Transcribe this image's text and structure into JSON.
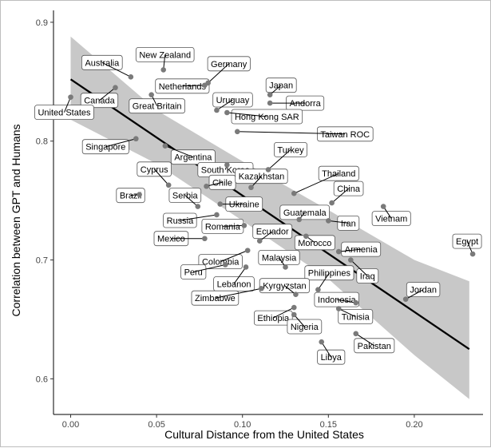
{
  "chart_data": {
    "type": "scatter",
    "title": "",
    "xlabel": "Cultural Distance from the United States",
    "ylabel": "Correlation between GPT and Humans",
    "xlim": [
      -0.01,
      0.24
    ],
    "ylim": [
      0.57,
      0.91
    ],
    "x_ticks": [
      "0.00",
      "0.05",
      "0.10",
      "0.15",
      "0.20"
    ],
    "y_ticks": [
      "0.6",
      "0.7",
      "0.8",
      "0.9"
    ],
    "grid": false,
    "legend": "none",
    "trend_line": {
      "x": [
        0.0,
        0.232
      ],
      "y": [
        0.852,
        0.625
      ]
    },
    "confidence_band": {
      "x": [
        0.0,
        0.05,
        0.1,
        0.15,
        0.2,
        0.232
      ],
      "upper": [
        0.888,
        0.826,
        0.783,
        0.742,
        0.7,
        0.682
      ],
      "lower": [
        0.818,
        0.781,
        0.733,
        0.684,
        0.62,
        0.583
      ]
    },
    "colors": {
      "point": "#7a7a7a",
      "line": "#000000",
      "band": "#c8c8c8",
      "label_border": "#555555"
    },
    "points": [
      {
        "name": "Australia",
        "x": 0.035,
        "y": 0.854
      },
      {
        "name": "New Zealand",
        "x": 0.054,
        "y": 0.86
      },
      {
        "name": "Germany",
        "x": 0.08,
        "y": 0.849
      },
      {
        "name": "Netherlands",
        "x": 0.078,
        "y": 0.847
      },
      {
        "name": "Canada",
        "x": 0.026,
        "y": 0.845
      },
      {
        "name": "United States",
        "x": 0.0,
        "y": 0.837
      },
      {
        "name": "Great Britain",
        "x": 0.047,
        "y": 0.839
      },
      {
        "name": "Uruguay",
        "x": 0.085,
        "y": 0.826
      },
      {
        "name": "Japan",
        "x": 0.116,
        "y": 0.839
      },
      {
        "name": "Andorra",
        "x": 0.116,
        "y": 0.832
      },
      {
        "name": "Hong Kong SAR",
        "x": 0.091,
        "y": 0.824
      },
      {
        "name": "Taiwan ROC",
        "x": 0.097,
        "y": 0.808
      },
      {
        "name": "Singapore",
        "x": 0.038,
        "y": 0.802
      },
      {
        "name": "Argentina",
        "x": 0.055,
        "y": 0.796
      },
      {
        "name": "South Korea",
        "x": 0.091,
        "y": 0.78
      },
      {
        "name": "Turkey",
        "x": 0.115,
        "y": 0.776
      },
      {
        "name": "Thailand",
        "x": 0.13,
        "y": 0.756
      },
      {
        "name": "Cyprus",
        "x": 0.057,
        "y": 0.763
      },
      {
        "name": "Chile",
        "x": 0.079,
        "y": 0.762
      },
      {
        "name": "Kazakhstan",
        "x": 0.105,
        "y": 0.761
      },
      {
        "name": "Brazil",
        "x": 0.04,
        "y": 0.755
      },
      {
        "name": "Serbia",
        "x": 0.074,
        "y": 0.745
      },
      {
        "name": "China",
        "x": 0.152,
        "y": 0.748
      },
      {
        "name": "Ukraine",
        "x": 0.087,
        "y": 0.747
      },
      {
        "name": "Vietnam",
        "x": 0.182,
        "y": 0.745
      },
      {
        "name": "Guatemala",
        "x": 0.133,
        "y": 0.734
      },
      {
        "name": "Russia",
        "x": 0.085,
        "y": 0.738
      },
      {
        "name": "Iran",
        "x": 0.15,
        "y": 0.733
      },
      {
        "name": "Romania",
        "x": 0.101,
        "y": 0.729
      },
      {
        "name": "Ecuador",
        "x": 0.11,
        "y": 0.716
      },
      {
        "name": "Morocco",
        "x": 0.137,
        "y": 0.72
      },
      {
        "name": "Mexico",
        "x": 0.078,
        "y": 0.718
      },
      {
        "name": "Egypt",
        "x": 0.234,
        "y": 0.705
      },
      {
        "name": "Armenia",
        "x": 0.156,
        "y": 0.707
      },
      {
        "name": "Colombia",
        "x": 0.103,
        "y": 0.708
      },
      {
        "name": "Malaysia",
        "x": 0.125,
        "y": 0.694
      },
      {
        "name": "Iraq",
        "x": 0.163,
        "y": 0.7
      },
      {
        "name": "Peru",
        "x": 0.09,
        "y": 0.696
      },
      {
        "name": "Lebanon",
        "x": 0.102,
        "y": 0.694
      },
      {
        "name": "Philippines",
        "x": 0.144,
        "y": 0.675
      },
      {
        "name": "Kyrgyzstan",
        "x": 0.131,
        "y": 0.671
      },
      {
        "name": "Zimbabwe",
        "x": 0.111,
        "y": 0.676
      },
      {
        "name": "Indonesia",
        "x": 0.166,
        "y": 0.664
      },
      {
        "name": "Jordan",
        "x": 0.195,
        "y": 0.667
      },
      {
        "name": "Ethiopia",
        "x": 0.13,
        "y": 0.66
      },
      {
        "name": "Tunisia",
        "x": 0.156,
        "y": 0.659
      },
      {
        "name": "Nigeria",
        "x": 0.13,
        "y": 0.654
      },
      {
        "name": "Pakistan",
        "x": 0.166,
        "y": 0.638
      },
      {
        "name": "Libya",
        "x": 0.146,
        "y": 0.631
      }
    ]
  }
}
